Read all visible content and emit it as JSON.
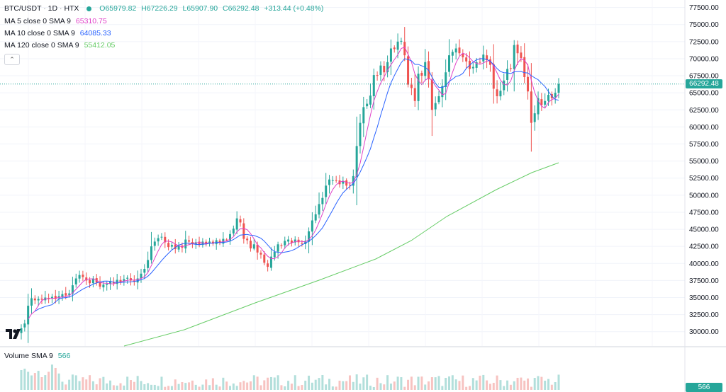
{
  "symbol": {
    "pair": "BTC/USDT",
    "interval": "1D",
    "exchange": "HTX",
    "status_dot_color": "#26a69a",
    "open": "O65979.82",
    "high": "H67226.29",
    "low": "L65907.90",
    "close": "C66292.48",
    "change": "+313.44 (+0.48%)"
  },
  "indicators": [
    {
      "label": "MA 5 close 0 SMA 9",
      "value": "65310.75",
      "color": "#e040c8"
    },
    {
      "label": "MA 10 close 0 SMA 9",
      "value": "64085.33",
      "color": "#2962ff"
    },
    {
      "label": "MA 120 close 0 SMA 9",
      "value": "55412.05",
      "color": "#66cc66"
    }
  ],
  "volume_legend": {
    "label": "Volume SMA 9",
    "value": "566"
  },
  "last_price_tag": "66292.48",
  "volume_tag": "566",
  "colors": {
    "up": "#26a69a",
    "down": "#ef5350",
    "ma5": "#e040c8",
    "ma10": "#2962ff",
    "ma120": "#66cc66"
  },
  "price_axis": [
    "77500.00",
    "75000.00",
    "72500.00",
    "70000.00",
    "67500.00",
    "65000.00",
    "62500.00",
    "60000.00",
    "57500.00",
    "55000.00",
    "52500.00",
    "50000.00",
    "47500.00",
    "45000.00",
    "42500.00",
    "40000.00",
    "37500.00",
    "35000.00",
    "32500.00",
    "30000.00"
  ],
  "chart_data": {
    "type": "candlestick",
    "y_axis_range": [
      30000,
      77500
    ],
    "closes": [
      30500,
      31200,
      33800,
      34900,
      34600,
      34800,
      34700,
      35000,
      34900,
      35100,
      34800,
      35200,
      35500,
      35300,
      35600,
      36800,
      37800,
      38300,
      38000,
      37500,
      37100,
      37800,
      37200,
      36600,
      36900,
      37000,
      37400,
      37100,
      37600,
      37300,
      37700,
      37900,
      37500,
      37300,
      37800,
      38500,
      39200,
      40500,
      42500,
      43200,
      43700,
      43900,
      43100,
      42400,
      42700,
      42100,
      42600,
      42300,
      43500,
      43200,
      42900,
      43100,
      42700,
      43200,
      42800,
      43200,
      42900,
      43400,
      43000,
      43600,
      43500,
      44300,
      45100,
      46600,
      46000,
      43600,
      43400,
      42200,
      42800,
      41600,
      41300,
      40100,
      39500,
      41000,
      41700,
      42800,
      42600,
      43300,
      43500,
      43000,
      43500,
      43100,
      42900,
      43300,
      44700,
      46300,
      47200,
      48700,
      49600,
      51400,
      52300,
      52200,
      52100,
      51600,
      52100,
      51400,
      51500,
      52800,
      57200,
      60600,
      62900,
      63400,
      64600,
      67600,
      67500,
      69000,
      68000,
      69500,
      71500,
      71400,
      72500,
      72600,
      70500,
      66200,
      65700,
      63800,
      67800,
      67500,
      69500,
      67000,
      62500,
      63500,
      64500,
      66000,
      68000,
      70500,
      71000,
      71500,
      70800,
      70200,
      69600,
      68500,
      68800,
      69500,
      69500,
      70600,
      69800,
      69100,
      65600,
      64500,
      65300,
      66800,
      68500,
      68600,
      72000,
      70800,
      70100,
      67300,
      65200,
      60600,
      62000,
      64200,
      63200,
      63800,
      64700,
      64200,
      65000,
      66292
    ]
  }
}
